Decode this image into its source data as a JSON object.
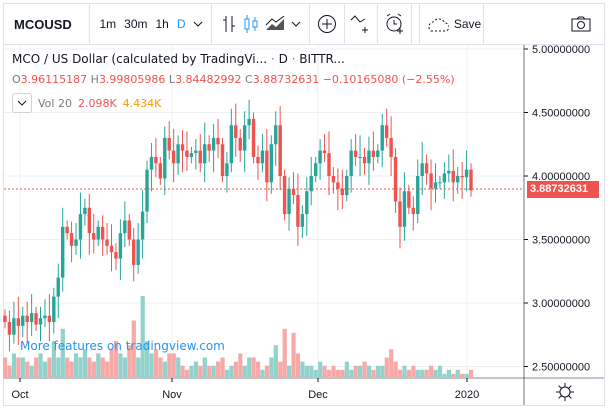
{
  "toolbar": {
    "symbol": "MCOUSD",
    "intervals": [
      "1m",
      "30m",
      "1h",
      "D"
    ],
    "active_interval": "D",
    "save_label": "Save",
    "icons": [
      "chevron-down-icon",
      "bar-chart-icon",
      "candles-icon",
      "area-chart-icon",
      "chevron-down-icon",
      "add-indicator-icon",
      "compare-icon",
      "alert-icon",
      "cloud-icon",
      "camera-icon"
    ]
  },
  "legend": {
    "title": "MCO / US Dollar (calculated by TradingVi...",
    "sep1": "·",
    "interval": "D",
    "sep2": "·",
    "exchange": "BITTR...",
    "o_label": "O",
    "o": "3.96115187",
    "h_label": "H",
    "h": "3.99805986",
    "l_label": "L",
    "l": "3.84482992",
    "c_label": "C",
    "c": "3.88732631",
    "change": "−0.10165080 (−2.55%)",
    "vol_label": "Vol 20",
    "vol": "2.098K",
    "vol_ma": "4.434K"
  },
  "promo": "More features on tradingview.com",
  "colors": {
    "up": "#26a69a",
    "down": "#ef5350",
    "vol_up": "#92d2cc",
    "vol_down": "#f7a9a7",
    "accent": "#2196f3",
    "vol_ma": "#ff9800"
  },
  "chart_data": {
    "type": "candlestick",
    "price_axis": {
      "ticks": [
        "5.00000000",
        "4.50000000",
        "4.00000000",
        "3.50000000",
        "3.00000000",
        "2.50000000"
      ],
      "range": [
        2.4,
        5.02
      ]
    },
    "time_axis": {
      "ticks": [
        "Oct",
        "Nov",
        "Dec",
        "2020"
      ]
    },
    "last_price": "3.88732631",
    "close": [
      2.85,
      2.75,
      2.88,
      2.82,
      2.9,
      2.85,
      2.92,
      2.83,
      2.88,
      2.9,
      2.85,
      3.05,
      3.2,
      3.6,
      3.55,
      3.45,
      3.5,
      3.7,
      3.75,
      3.55,
      3.5,
      3.6,
      3.5,
      3.45,
      3.4,
      3.35,
      3.55,
      3.65,
      3.5,
      3.3,
      3.5,
      3.72,
      4.05,
      4.15,
      4.1,
      3.98,
      4.3,
      4.2,
      4.1,
      4.25,
      4.2,
      4.15,
      4.18,
      4.2,
      4.1,
      4.25,
      4.2,
      4.3,
      4.25,
      4.0,
      4.1,
      4.4,
      4.3,
      4.2,
      4.4,
      4.45,
      4.15,
      4.1,
      4.2,
      3.95,
      4.25,
      4.4,
      4.0,
      3.7,
      3.9,
      3.85,
      3.6,
      3.7,
      3.88,
      4.0,
      4.1,
      4.2,
      4.18,
      4.0,
      3.95,
      3.9,
      3.85,
      4.0,
      4.2,
      4.15,
      4.15,
      4.1,
      4.2,
      4.15,
      4.2,
      4.4,
      4.3,
      4.15,
      3.8,
      3.6,
      3.88,
      3.75,
      3.7,
      4.0,
      4.1,
      4.02,
      3.9,
      3.95,
      3.95,
      4.02,
      4.04,
      3.95,
      4.0,
      3.99,
      4.05,
      3.887
    ],
    "volume_k": [
      5,
      3,
      6,
      5,
      5,
      4,
      3,
      5,
      6,
      4,
      5,
      9,
      5,
      12,
      5,
      4,
      6,
      5,
      7,
      5,
      4,
      6,
      5,
      4,
      7,
      9,
      6,
      5,
      8,
      14,
      5,
      20,
      9,
      6,
      7,
      5,
      4,
      6,
      6,
      5,
      3,
      2,
      3,
      4,
      3,
      5,
      3,
      3,
      4,
      5,
      2,
      3,
      4,
      6,
      3,
      5,
      5,
      4,
      2,
      3,
      5,
      8,
      4,
      12,
      3,
      11,
      6,
      4,
      3,
      3,
      2,
      4,
      3,
      2,
      3,
      2,
      2,
      4,
      2,
      3,
      3,
      4,
      3,
      2,
      3,
      3,
      5,
      7,
      4,
      2,
      3,
      2,
      3,
      2,
      2,
      2,
      3,
      2,
      3,
      1,
      2,
      1,
      2,
      1,
      1,
      2
    ]
  }
}
